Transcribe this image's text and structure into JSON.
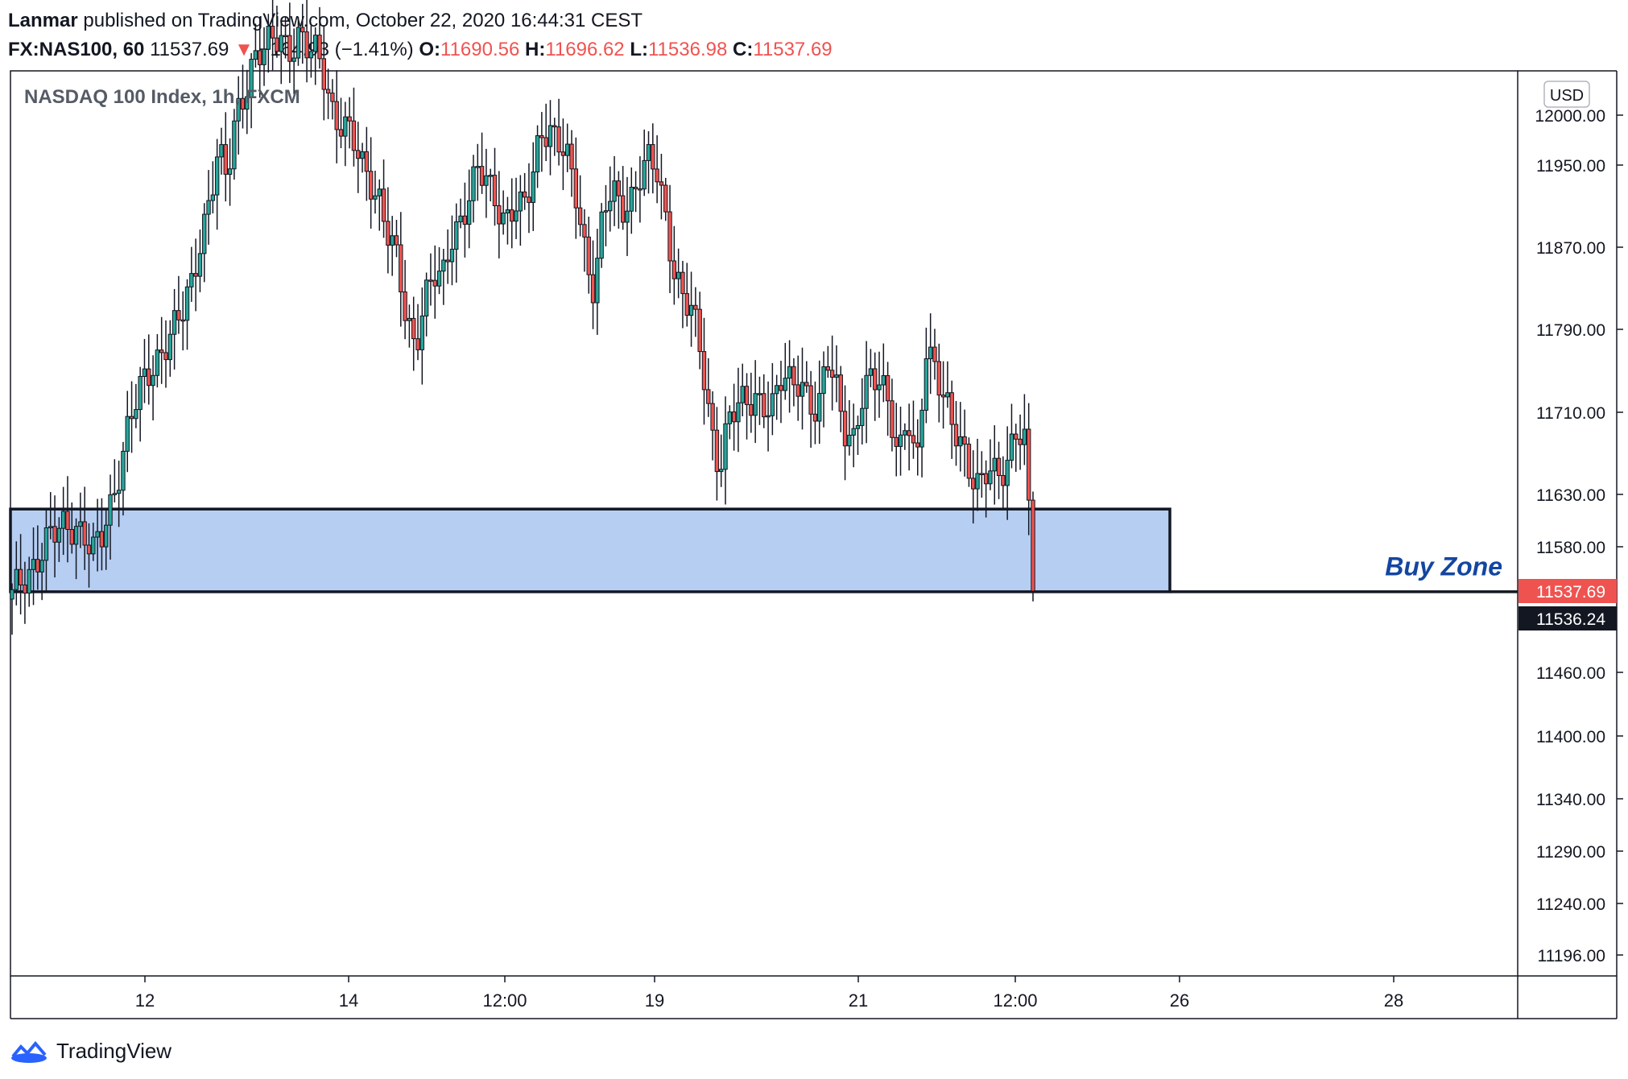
{
  "header": {
    "author": "Lanmar",
    "published": " published on TradingView.com, October 22, 2020 16:44:31 CEST",
    "symbol": "FX:NAS100, 60",
    "last": "11537.69",
    "change_arrow": "▼",
    "change": "−164.93 (−1.41%)",
    "o_label": "O:",
    "o_value": "11690.56",
    "h_label": "H:",
    "h_value": "11696.62",
    "l_label": "L:",
    "l_value": "11536.98",
    "c_label": "C:",
    "c_value": "11537.69"
  },
  "footer": {
    "brand": "TradingView"
  },
  "colors": {
    "up": "#26a69a",
    "down": "#ef5350",
    "zone_fill": "#b7cef3",
    "zone_text": "#1446a0"
  },
  "chart_data": {
    "type": "candlestick",
    "title": "NASDAQ 100 Index, 1h, FXCM",
    "currency": "USD",
    "y_ticks": [
      12000.0,
      11950.0,
      11870.0,
      11790.0,
      11710.0,
      11630.0,
      11580.0,
      11460.0,
      11400.0,
      11340.0,
      11290.0,
      11240.0,
      11196.0
    ],
    "y_tick_labels": [
      "12000.00",
      "11950.00",
      "11870.00",
      "11790.00",
      "11710.00",
      "11630.00",
      "11580.00",
      "11460.00",
      "11400.00",
      "11340.00",
      "11290.00",
      "11240.00",
      "11196.00"
    ],
    "x_tick_labels": [
      "12",
      "14",
      "12:00",
      "19",
      "21",
      "12:00",
      "26",
      "28"
    ],
    "price_labels": {
      "last": "11537.69",
      "level": "11536.24"
    },
    "zone": {
      "label": "Buy Zone",
      "top": 11616,
      "bottom": 11537
    },
    "close_path": [
      11530,
      11545,
      11560,
      11575,
      11585,
      11590,
      11600,
      11605,
      11595,
      11570,
      11585,
      11620,
      11660,
      11700,
      11720,
      11740,
      11760,
      11780,
      11790,
      11800,
      11830,
      11880,
      11920,
      11960,
      11930,
      12000,
      12030,
      12060,
      12060,
      12070,
      12080,
      12070,
      12080,
      12060,
      12060,
      12040,
      12000,
      11990,
      11970,
      11950,
      11940,
      11920,
      11880,
      11850,
      11800,
      11780,
      11820,
      11840,
      11830,
      11880,
      11900,
      11920,
      11940,
      11930,
      11920,
      11900,
      11910,
      11900,
      11930,
      11990,
      11990,
      11970,
      11950,
      11920,
      11870,
      11830,
      11900,
      11920,
      11910,
      11920,
      11940,
      11950,
      11940,
      11900,
      11850,
      11820,
      11800,
      11760,
      11700,
      11660,
      11700,
      11710,
      11720,
      11730,
      11720,
      11710,
      11740,
      11740,
      11750,
      11720,
      11700,
      11760,
      11740,
      11700,
      11680,
      11720,
      11740,
      11750,
      11720,
      11660,
      11700,
      11650,
      11780,
      11760,
      11720,
      11690,
      11680,
      11660,
      11640,
      11650,
      11640,
      11660,
      11700,
      11690,
      11537
    ]
  }
}
